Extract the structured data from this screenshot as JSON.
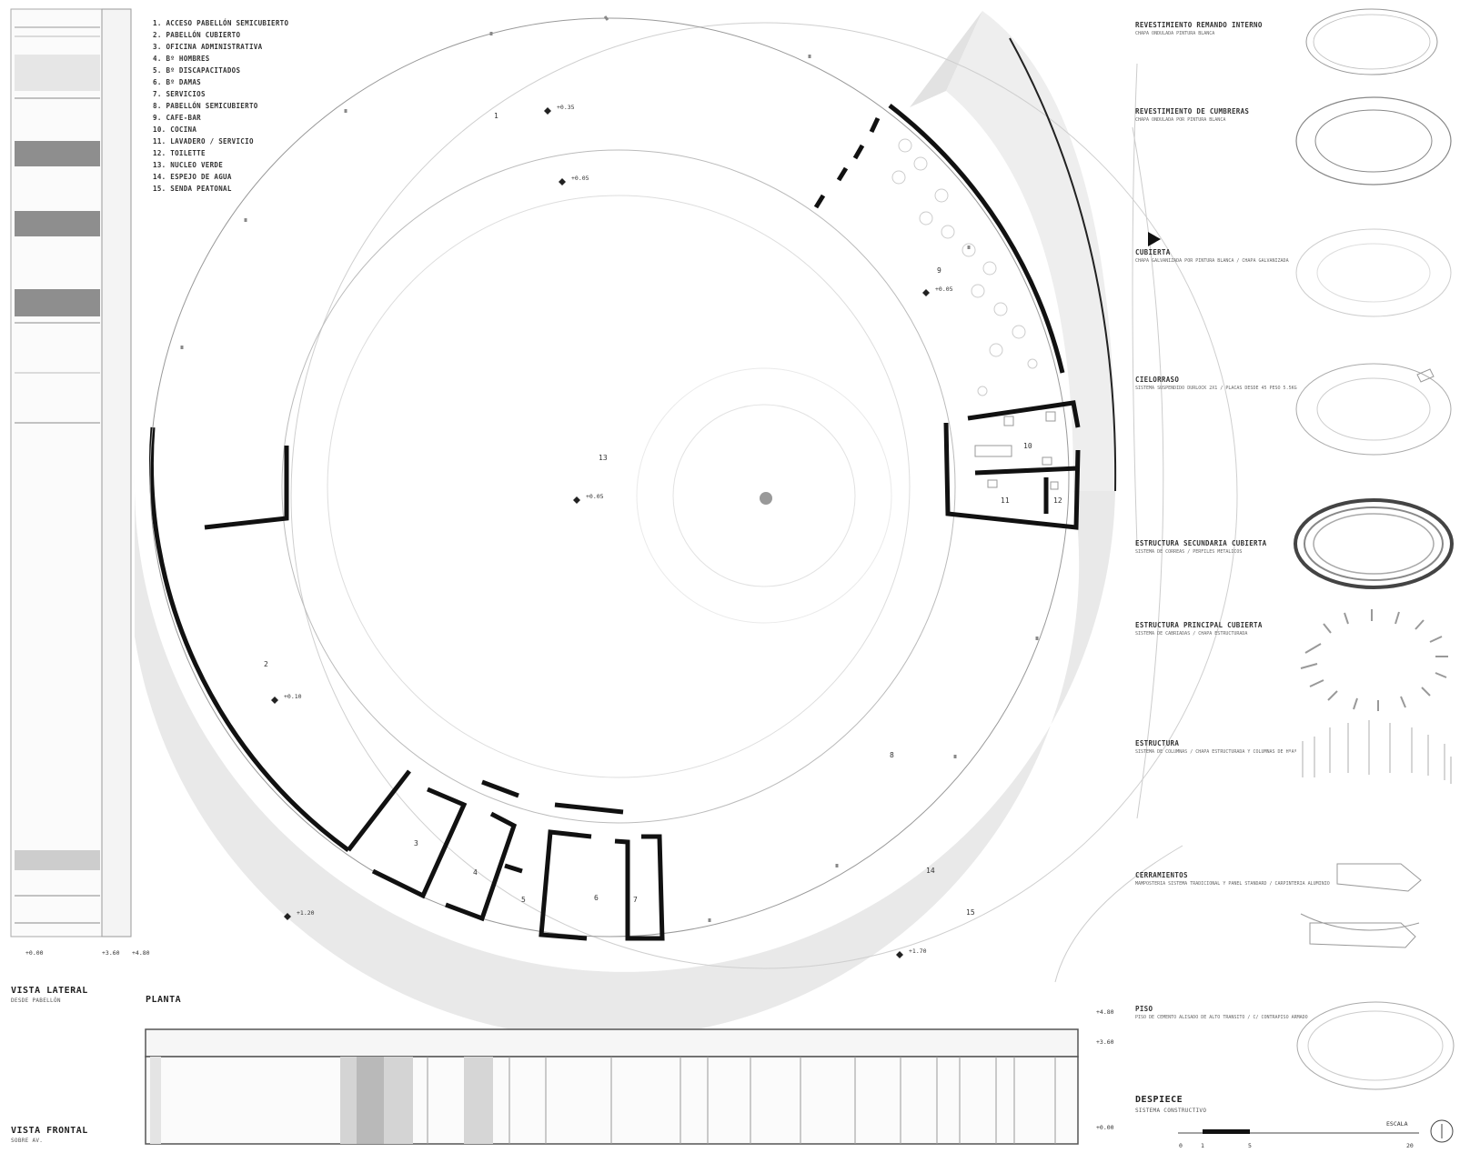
{
  "legend": [
    "1.  ACCESO PABELLÓN SEMICUBIERTO",
    "2.  PABELLÓN CUBIERTO",
    "3.  OFICINA ADMINISTRATIVA",
    "4.  Bº HOMBRES",
    "5.  Bº DISCAPACITADOS",
    "6.  Bº DAMAS",
    "7.  SERVICIOS",
    "8.  PABELLÓN SEMICUBIERTO",
    "9.  CAFE-BAR",
    "10. COCINA",
    "11. LAVADERO / SERVICIO",
    "12. TOILETTE",
    "13. NUCLEO VERDE",
    "14. ESPEJO DE AGUA",
    "15. SENDA PEATONAL"
  ],
  "views": {
    "side_title": "VISTA LATERAL",
    "side_sub": "DESDE PABELLÓN",
    "plan_title": "PLANTA",
    "front_title": "VISTA FRONTAL",
    "front_sub": "SOBRE AV.",
    "exploded_title": "DESPIECE",
    "exploded_sub": "SISTEMA CONSTRUCTIVO"
  },
  "level_marks": {
    "center": "+0.05",
    "top_1": "+0.35",
    "top_2": "+0.05",
    "right_1": "+0.05",
    "left": "+0.10",
    "bottom_left": "+1.20",
    "bottom_right": "+1.70"
  },
  "room_numbers": [
    "1",
    "2",
    "3",
    "4",
    "5",
    "6",
    "7",
    "8",
    "9",
    "10",
    "11",
    "12",
    "13",
    "14",
    "15"
  ],
  "elevation_levels": {
    "top": "+4.80",
    "mid": "+3.60",
    "bottom": "+0.00"
  },
  "exploded_items": [
    {
      "title": "REVESTIMIENTO REMANDO INTERNO",
      "note": "CHAPA ONDULADA PINTURA BLANCA"
    },
    {
      "title": "REVESTIMIENTO DE CUMBRERAS",
      "note": "CHAPA ONDULADA POR PINTURA BLANCA"
    },
    {
      "title": "CUBIERTA",
      "note": "CHAPA GALVANIZADA POR PINTURA BLANCA / CHAPA GALVANIZADA"
    },
    {
      "title": "CIELORRASO",
      "note": "SISTEMA SUSPENDIDO DURLOCK 2X1 / PLACAS DESDE 45 PESO 5.5KG"
    },
    {
      "title": "ESTRUCTURA SECUNDARIA CUBIERTA",
      "note": "SISTEMA DE CORREAS / PERFILES METALICOS"
    },
    {
      "title": "ESTRUCTURA PRINCIPAL CUBIERTA",
      "note": "SISTEMA DE CABRIADAS / CHAPA ESTRUCTURADA"
    },
    {
      "title": "ESTRUCTURA",
      "note": "SISTEMA DE COLUMNAS / CHAPA ESTRUCTURADA Y COLUMNAS DE HºAº"
    },
    {
      "title": "CERRAMIENTOS",
      "note": "MAMPOSTERIA SISTEMA TRADICIONAL Y PANEL STANDARD / CARPINTERIA ALUMINIO"
    },
    {
      "title": "PISO",
      "note": "PISO DE CEMENTO ALISADO DE ALTO TRANSITO / C/ CONTRAPISO ARMADO"
    }
  ],
  "scale": {
    "label": "ESCALA",
    "ticks": [
      "0",
      "1",
      "5",
      "20"
    ]
  }
}
